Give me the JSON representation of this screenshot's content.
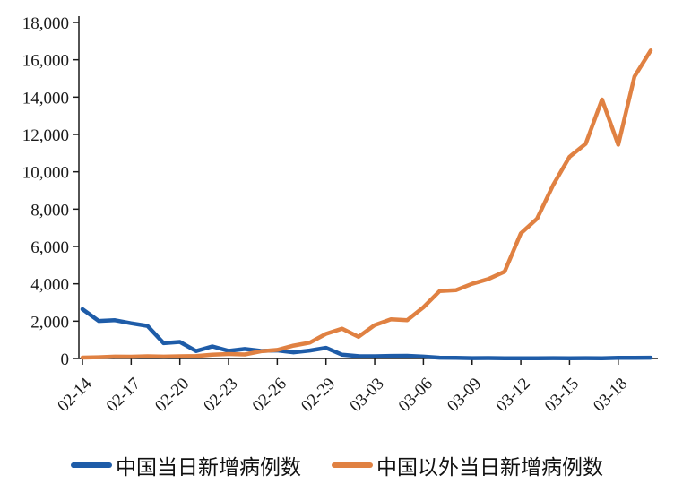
{
  "chart_data": {
    "type": "line",
    "title": "",
    "xlabel": "",
    "ylabel": "",
    "grid": false,
    "legend_position": "bottom",
    "axis_color": "#1a1a1a",
    "ylim": [
      0,
      18000
    ],
    "y_tick_step": 2000,
    "y_tick_labels": [
      "0",
      "2,000",
      "4,000",
      "6,000",
      "8,000",
      "10,000",
      "12,000",
      "14,000",
      "16,000",
      "18,000"
    ],
    "x_tick_every": 3,
    "x_tick_labels": [
      "02-14",
      "02-17",
      "02-20",
      "02-23",
      "02-26",
      "02-29",
      "03-03",
      "03-06",
      "03-09",
      "03-12",
      "03-15",
      "03-18"
    ],
    "x": [
      "02-14",
      "02-15",
      "02-16",
      "02-17",
      "02-18",
      "02-19",
      "02-20",
      "02-21",
      "02-22",
      "02-23",
      "02-24",
      "02-25",
      "02-26",
      "02-27",
      "02-28",
      "02-29",
      "03-01",
      "03-02",
      "03-03",
      "03-04",
      "03-05",
      "03-06",
      "03-07",
      "03-08",
      "03-09",
      "03-10",
      "03-11",
      "03-12",
      "03-13",
      "03-14",
      "03-15",
      "03-16",
      "03-17",
      "03-18",
      "03-19",
      "03-20"
    ],
    "series": [
      {
        "name": "中国当日新增病例数",
        "color": "#1e5ca8",
        "values": [
          2641,
          2009,
          2048,
          1886,
          1749,
          820,
          889,
          397,
          648,
          409,
          508,
          406,
          433,
          327,
          427,
          573,
          202,
          125,
          119,
          139,
          143,
          99,
          44,
          40,
          19,
          24,
          15,
          8,
          11,
          20,
          16,
          21,
          13,
          34,
          39,
          41
        ]
      },
      {
        "name": "中国以外当日新增病例数",
        "color": "#e08142",
        "values": [
          50,
          65,
          100,
          95,
          120,
          100,
          120,
          135,
          200,
          240,
          215,
          390,
          460,
          690,
          850,
          1320,
          1600,
          1160,
          1790,
          2100,
          2050,
          2740,
          3610,
          3660,
          4000,
          4260,
          4650,
          6700,
          7490,
          9300,
          10800,
          11500,
          13870,
          11450,
          15100,
          16500
        ]
      }
    ]
  }
}
